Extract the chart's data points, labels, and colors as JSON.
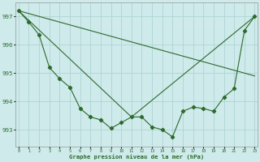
{
  "line1_x": [
    0,
    1,
    2,
    3,
    4,
    5,
    6,
    7,
    8,
    9,
    10,
    11,
    12,
    13,
    14,
    15,
    16,
    17,
    18,
    19,
    20,
    21,
    22,
    23
  ],
  "line1_y": [
    997.2,
    996.8,
    996.35,
    995.2,
    994.8,
    994.5,
    993.75,
    993.45,
    993.35,
    993.05,
    993.25,
    993.45,
    993.45,
    993.1,
    993.0,
    992.75,
    993.65,
    993.8,
    993.75,
    993.65,
    994.15,
    994.45,
    996.5,
    997.0
  ],
  "line2_x": [
    0,
    23
  ],
  "line2_y": [
    997.2,
    994.9
  ],
  "line3_x": [
    0,
    11,
    23
  ],
  "line3_y": [
    997.2,
    993.45,
    997.0
  ],
  "xlabel": "Graphe pression niveau de la mer (hPa)",
  "ylim": [
    992.4,
    997.5
  ],
  "xlim": [
    -0.3,
    23.3
  ],
  "yticks": [
    993,
    994,
    995,
    996,
    997
  ],
  "xticks": [
    0,
    1,
    2,
    3,
    4,
    5,
    6,
    7,
    8,
    9,
    10,
    11,
    12,
    13,
    14,
    15,
    16,
    17,
    18,
    19,
    20,
    21,
    22,
    23
  ],
  "xtick_labels": [
    "0",
    "1",
    "2",
    "3",
    "4",
    "5",
    "6",
    "7",
    "8",
    "9",
    "10",
    "11",
    "12",
    "13",
    "14",
    "15",
    "16",
    "17",
    "18",
    "19",
    "20",
    "21",
    "22",
    "23"
  ],
  "line_color": "#2d6a2d",
  "bg_color": "#ceeaea",
  "grid_color": "#aad0d0",
  "markersize": 2.2
}
